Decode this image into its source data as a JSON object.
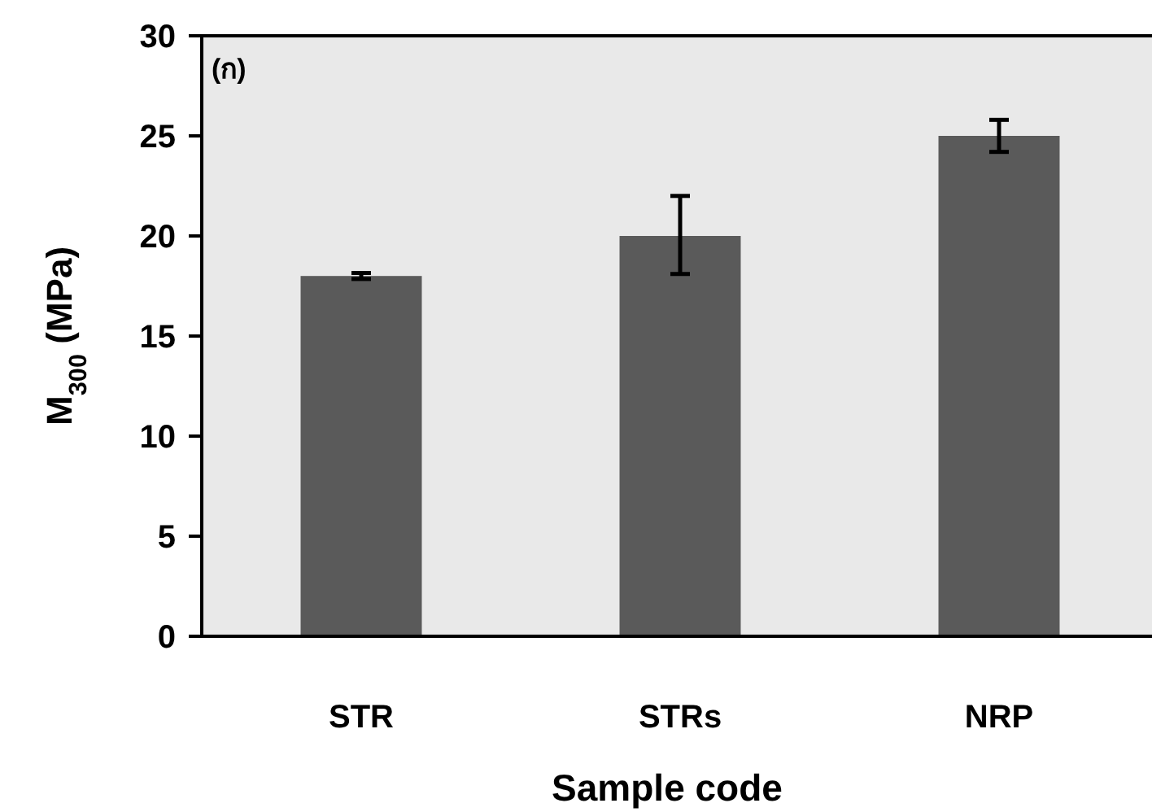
{
  "chart_data": {
    "type": "bar",
    "categories": [
      "STR",
      "STRs",
      "NRP"
    ],
    "values": [
      18,
      20,
      25
    ],
    "color": "#5a5a5a",
    "errors": [
      0.15,
      [
        18.1,
        22
      ],
      0.8
    ],
    "ylim": [
      0,
      30
    ],
    "yticks": [
      0,
      5,
      10,
      15,
      20,
      25,
      30
    ],
    "grid": false,
    "xlabel": "Sample code",
    "ylabel": "M$_{300}$ (MPa)",
    "annotations": [
      "(ก)"
    ]
  }
}
